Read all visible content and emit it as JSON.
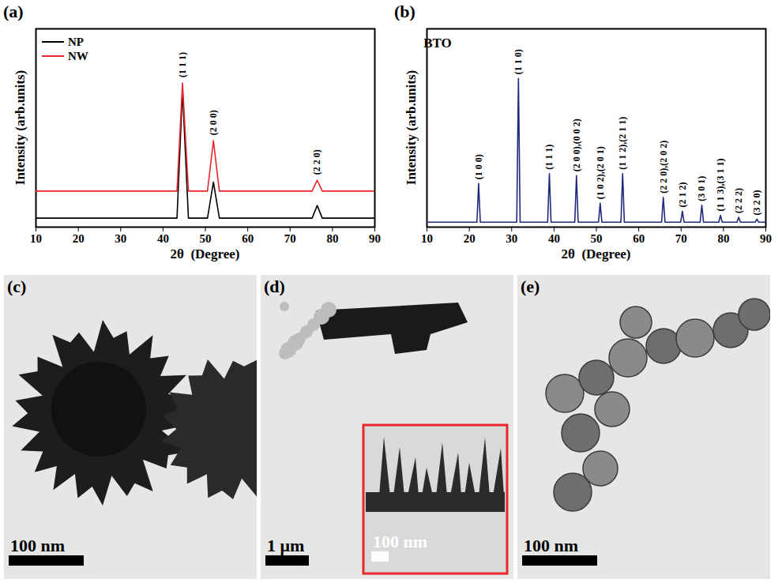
{
  "chart_data": [
    {
      "panel": "(a)",
      "type": "line",
      "x_label": "2θ  (Degree)",
      "y_label": "Intensity (arb.units)",
      "x": [
        10,
        43.3,
        44.6,
        46.0,
        50.5,
        51.9,
        53.3,
        75.2,
        76.4,
        77.6,
        90
      ],
      "series": [
        {
          "name": "NP",
          "color": "#000000",
          "values": [
            5,
            5,
            76,
            5,
            5,
            25,
            5,
            5,
            12,
            5,
            5
          ]
        },
        {
          "name": "NW",
          "color": "#e8262b",
          "values": [
            20,
            20,
            80,
            20,
            20,
            48,
            20,
            20,
            26,
            20,
            20
          ]
        }
      ],
      "xlim": [
        10,
        90
      ],
      "xticks": [
        10,
        20,
        30,
        40,
        50,
        60,
        70,
        80,
        90
      ],
      "ylim": [
        0,
        110
      ],
      "tick_labels": "x",
      "grid": false,
      "legend": "upper left",
      "annotations": [
        {
          "text": "(1 1 1)",
          "x": 44.6,
          "y": 83
        },
        {
          "text": "(2 0 0)",
          "x": 51.9,
          "y": 51
        },
        {
          "text": "(2 2 0)",
          "x": 76.4,
          "y": 29
        }
      ]
    },
    {
      "panel": "(b)",
      "type": "line",
      "title": "BTO",
      "x_label": "2θ  (Degree)",
      "y_label": "Intensity (arb.units)",
      "x": [
        10,
        21.8,
        22.2,
        22.6,
        31.2,
        31.6,
        32.0,
        38.5,
        38.9,
        39.3,
        44.9,
        45.3,
        45.7,
        50.5,
        50.9,
        51.3,
        55.8,
        56.2,
        56.6,
        65.4,
        65.8,
        66.2,
        69.9,
        70.3,
        70.7,
        74.5,
        74.9,
        75.3,
        78.9,
        79.3,
        79.7,
        83.2,
        83.6,
        84.0,
        87.5,
        87.9,
        88.3,
        90
      ],
      "series": [
        {
          "name": "BTO",
          "color": "#1f2a7a",
          "values": [
            2.5,
            2.5,
            22,
            2.5,
            2.5,
            75,
            2.5,
            2.5,
            27,
            2.5,
            2.5,
            26,
            2.5,
            2.5,
            12,
            2.5,
            2.5,
            27,
            2.5,
            2.5,
            15,
            2.5,
            2.5,
            8,
            2.5,
            2.5,
            11,
            2.5,
            2.5,
            6,
            2.5,
            2.5,
            5,
            2.5,
            2.5,
            4,
            2.5,
            2.5
          ]
        }
      ],
      "xlim": [
        10,
        90
      ],
      "xticks": [
        10,
        20,
        30,
        40,
        50,
        60,
        70,
        80,
        90
      ],
      "ylim": [
        0,
        100
      ],
      "tick_labels": "x",
      "grid": false,
      "annotations": [
        {
          "text": "(1 0 0)",
          "x": 22.2,
          "y": 24
        },
        {
          "text": "(1 1 0)",
          "x": 31.6,
          "y": 77
        },
        {
          "text": "(1 1 1)",
          "x": 38.9,
          "y": 29
        },
        {
          "text": "(2 0 0),(0 0 2)",
          "x": 45.3,
          "y": 28
        },
        {
          "text": "(1 0 2),(2 0 1)",
          "x": 50.9,
          "y": 14
        },
        {
          "text": "(1 1 2),(2 1 1)",
          "x": 56.2,
          "y": 29
        },
        {
          "text": "(2 2 0),(2 0 2)",
          "x": 65.8,
          "y": 17
        },
        {
          "text": "(2 1 2)",
          "x": 70.3,
          "y": 10
        },
        {
          "text": "(3 0 1)",
          "x": 74.9,
          "y": 13
        },
        {
          "text": "(1 1 3),(3 1 1)",
          "x": 79.3,
          "y": 8
        },
        {
          "text": "(2 2 2)",
          "x": 83.6,
          "y": 7
        },
        {
          "text": "(3 2 0)",
          "x": 87.9,
          "y": 6
        }
      ]
    }
  ],
  "images": [
    {
      "panel": "(c)",
      "scale_bar": "100 nm"
    },
    {
      "panel": "(d)",
      "scale_bar": "1 μm",
      "inset": {
        "scale_bar": "100 nm"
      }
    },
    {
      "panel": "(e)",
      "scale_bar": "100 nm"
    }
  ]
}
